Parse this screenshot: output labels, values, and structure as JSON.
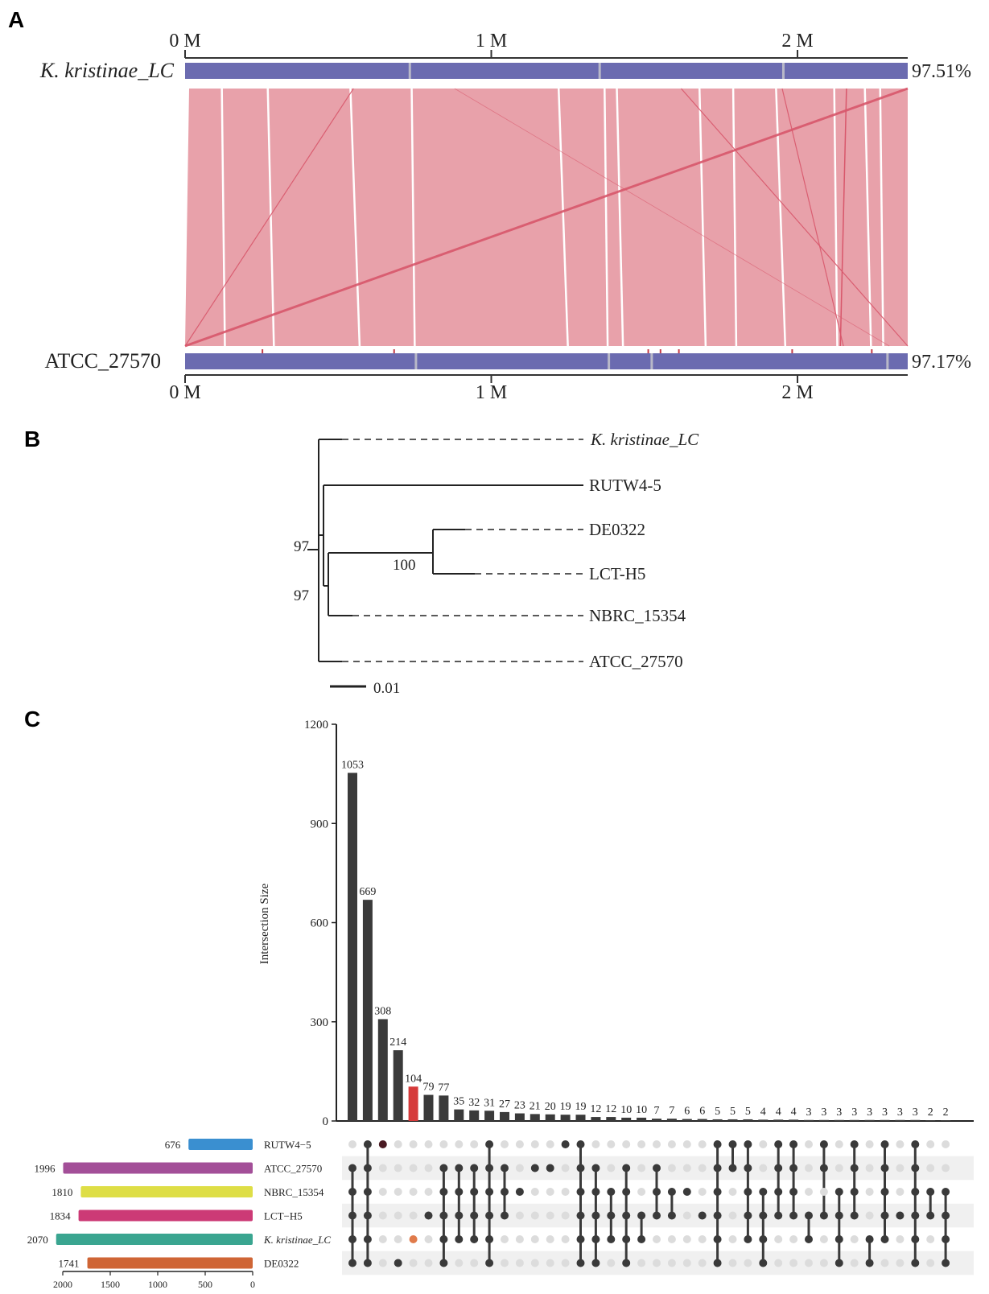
{
  "panel_labels": {
    "a": "A",
    "b": "B",
    "c": "C"
  },
  "colors": {
    "genome_bar": "#6b6bb0",
    "synteny": "#e8a1aa",
    "inversion": "#d8576b",
    "dark": "#3a3a3a",
    "highlight_bar": "#d63a3a",
    "dot_inactive": "#dcdcdc",
    "dot_highlight": "#e07b4b"
  },
  "chart_data": [
    {
      "panel": "A",
      "type": "synteny",
      "top_axis_ticks": [
        "0 M",
        "1 M",
        "2 M"
      ],
      "bottom_axis_ticks": [
        "0 M",
        "1 M",
        "2 M"
      ],
      "top_genome": {
        "name": "K. kristinae_LC",
        "coverage": "97.51%"
      },
      "bottom_genome": {
        "name": "ATCC_27570",
        "coverage": "97.17%"
      },
      "genome_length_mb": 2.36,
      "inversions": [
        {
          "top_start": 2.36,
          "top_end": 0.0,
          "bottom_start": 2.36,
          "bottom_end": 0.0
        },
        {
          "top_start": 0.55,
          "top_end": 0.0,
          "bottom_start": 2.36,
          "bottom_end": 0.0
        },
        {
          "top_start": 1.62,
          "top_end": 1.62,
          "bottom_start": 2.36,
          "bottom_end": 2.36
        },
        {
          "top_start": 1.95,
          "top_end": 1.95,
          "bottom_start": 2.15,
          "bottom_end": 2.15
        }
      ]
    },
    {
      "panel": "B",
      "type": "tree",
      "leaves": [
        "K. kristinae_LC",
        "RUTW4-5",
        "DE0322",
        "LCT-H5",
        "NBRC_15354",
        "ATCC_27570"
      ],
      "bootstrap_values": [
        "97",
        "97",
        "100"
      ],
      "scale_bar": "0.01"
    },
    {
      "panel": "C",
      "type": "upset",
      "ylabel": "Intersection Size",
      "y_ticks": [
        0,
        300,
        600,
        900,
        1200
      ],
      "ylim": [
        0,
        1200
      ],
      "intersection_sizes": [
        1053,
        669,
        308,
        214,
        104,
        79,
        77,
        35,
        32,
        31,
        27,
        23,
        21,
        20,
        19,
        19,
        12,
        12,
        10,
        10,
        7,
        7,
        6,
        6,
        5,
        5,
        5,
        4,
        4,
        4,
        3,
        3,
        3,
        3,
        3,
        3,
        3,
        3,
        2,
        2
      ],
      "highlight_index": 4,
      "sets": [
        "RUTW4−5",
        "ATCC_27570",
        "NBRC_15354",
        "LCT−H5",
        "K. kristinae_LC",
        "DE0322"
      ],
      "set_sizes": [
        676,
        1996,
        1810,
        1834,
        2070,
        1741
      ],
      "set_colors": [
        "#3a8fd0",
        "#a34f98",
        "#dede46",
        "#cc3a76",
        "#3aa590",
        "#cf6535"
      ],
      "set_size_ticks": [
        "2000",
        "1500",
        "1000",
        "500",
        "0"
      ],
      "set_size_xlim": [
        0,
        2000
      ]
    }
  ]
}
